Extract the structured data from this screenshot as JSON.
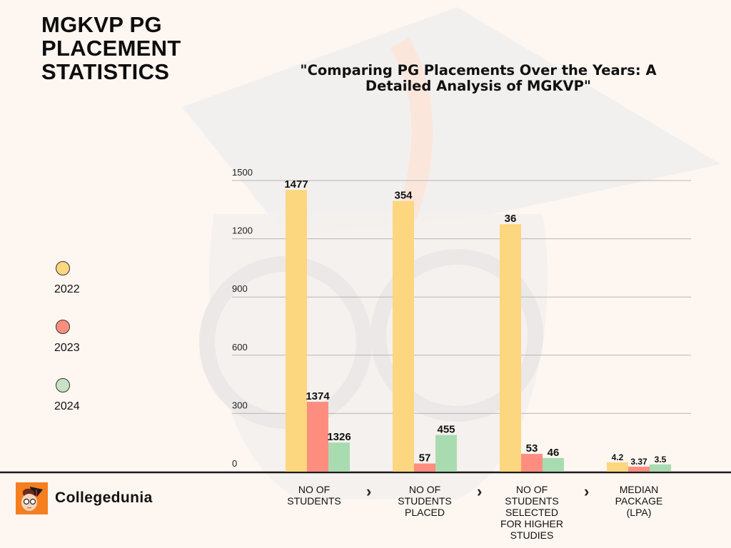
{
  "header": {
    "title_lines": [
      "MGKVP PG",
      "PLACEMENT",
      "STATISTICS"
    ],
    "subtitle_lines": [
      "\"Comparing PG Placements Over the Years: A",
      "Detailed Analysis of  MGKVP\""
    ]
  },
  "legend": [
    {
      "label": "2022",
      "color": "#fdd680"
    },
    {
      "label": "2023",
      "color": "#fd8e7f"
    },
    {
      "label": "2024",
      "color": "#c7e2c5"
    }
  ],
  "footer": {
    "brand": "Collegedunia",
    "logo_icon": "collegedunia-mascot-icon",
    "arrow_icon": "chevron-right-icon",
    "arrow_glyph": "›"
  },
  "chart_data": {
    "type": "bar",
    "title": "\"Comparing PG Placements Over the Years: A Detailed Analysis of  MGKVP\"",
    "xlabel": "",
    "ylabel": "",
    "ylim": [
      0,
      1500
    ],
    "yticks": [
      0,
      300,
      600,
      900,
      1200,
      1500
    ],
    "grid": true,
    "legend_position": "left",
    "categories": [
      [
        "NO OF",
        "STUDENTS"
      ],
      [
        "NO OF",
        "STUDENTS",
        "PLACED"
      ],
      [
        "NO OF",
        "STUDENTS",
        "SELECTED",
        "FOR HIGHER",
        "STUDIES"
      ],
      [
        "MEDIAN",
        "PACKAGE",
        "(LPA)"
      ]
    ],
    "series": [
      {
        "name": "2022",
        "color": "#fdd680",
        "values": [
          1477,
          354,
          36,
          4.2
        ]
      },
      {
        "name": "2023",
        "color": "#fd8e7f",
        "values": [
          1374,
          57,
          53,
          3.37
        ]
      },
      {
        "name": "2024",
        "color": "#a9dbb0",
        "values": [
          1326,
          455,
          46,
          3.5
        ]
      }
    ]
  }
}
